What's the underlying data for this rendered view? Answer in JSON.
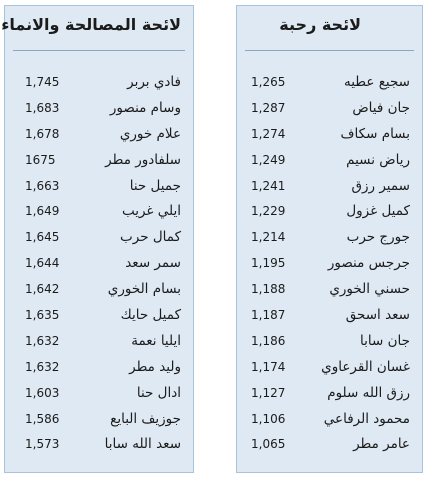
{
  "left_panel": {
    "title": "لائحة المصالحة والانماء",
    "rows": [
      {
        "name": "فادي بربر",
        "votes": "1,745"
      },
      {
        "name": "وسام منصور",
        "votes": "1,683"
      },
      {
        "name": "علام خوري",
        "votes": "1,678"
      },
      {
        "name": "سلفادور مطر",
        "votes": "1675"
      },
      {
        "name": "جميل حنا",
        "votes": "1,663"
      },
      {
        "name": "ايلي غريب",
        "votes": "1,649"
      },
      {
        "name": "كمال حرب",
        "votes": "1,645"
      },
      {
        "name": "سمر سعد",
        "votes": "1,644"
      },
      {
        "name": "بسام الخوري",
        "votes": "1,642"
      },
      {
        "name": "كميل حايك",
        "votes": "1,635"
      },
      {
        "name": "ايليا نعمة",
        "votes": "1,632"
      },
      {
        "name": "وليد مطر",
        "votes": "1,632"
      },
      {
        "name": "ادال حنا",
        "votes": "1,603"
      },
      {
        "name": "جوزيف البايع",
        "votes": "1,586"
      },
      {
        "name": "سعد الله سابا",
        "votes": "1,573"
      }
    ]
  },
  "right_panel": {
    "title": "لائحة رحبة",
    "rows": [
      {
        "name": "سجيع عطيه",
        "votes": "1,265"
      },
      {
        "name": "جان فياض",
        "votes": "1,287"
      },
      {
        "name": "بسام سكاف",
        "votes": "1,274"
      },
      {
        "name": "رياض نسيم",
        "votes": "1,249"
      },
      {
        "name": "سمير رزق",
        "votes": "1,241"
      },
      {
        "name": "كميل غزول",
        "votes": "1,229"
      },
      {
        "name": "جورج حرب",
        "votes": "1,214"
      },
      {
        "name": "جرجس منصور",
        "votes": "1,195"
      },
      {
        "name": "حسني الخوري",
        "votes": "1,188"
      },
      {
        "name": "سعد اسحق",
        "votes": "1,187"
      },
      {
        "name": "جان سابا",
        "votes": "1,186"
      },
      {
        "name": "غسان القرعاوي",
        "votes": "1,174"
      },
      {
        "name": "رزق الله سلوم",
        "votes": "1,127"
      },
      {
        "name": "محمود الرفاعي",
        "votes": "1,106"
      },
      {
        "name": "عامر مطر",
        "votes": "1,065"
      }
    ]
  }
}
